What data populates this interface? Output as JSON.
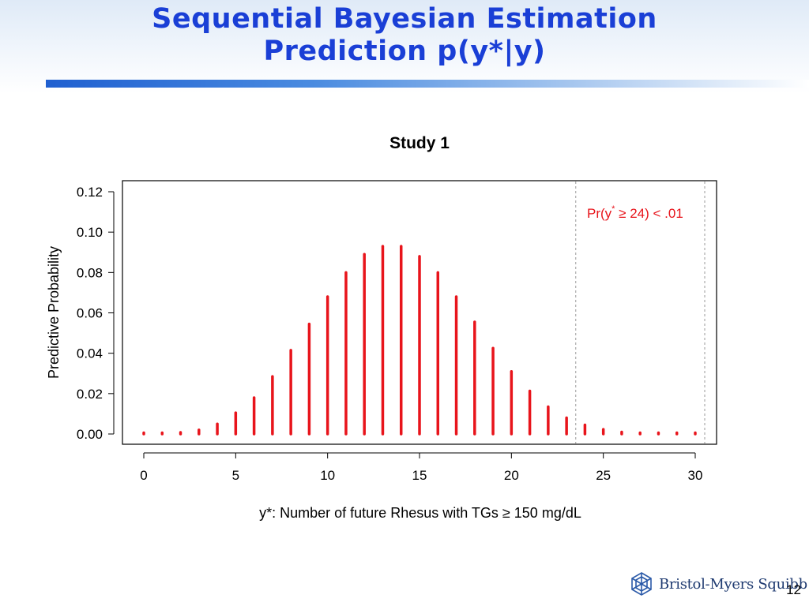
{
  "slide": {
    "title_line1": "Sequential Bayesian Estimation",
    "title_line2": "Prediction p(y*|y)",
    "page_number": "12",
    "logo_text": "Bristol-Myers Squibb",
    "logo_icon": "bms-logo-icon"
  },
  "chart_data": {
    "type": "bar",
    "title": "Study 1",
    "xlabel": "y*: Number of future Rhesus with TGs ≥ 150 mg/dL",
    "ylabel": "Predictive Probability",
    "xlim": [
      0,
      30
    ],
    "ylim": [
      0,
      0.12
    ],
    "x_ticks": [
      "0",
      "5",
      "10",
      "15",
      "20",
      "25",
      "30"
    ],
    "y_ticks": [
      "0.00",
      "0.02",
      "0.04",
      "0.06",
      "0.08",
      "0.10",
      "0.12"
    ],
    "grid": false,
    "bar_color": "#e8141b",
    "reference_line_x": 23.5,
    "annotation": {
      "text_main": "Pr(y",
      "text_sup": "*",
      "text_rest": " ≥ 24) < .01",
      "color": "#e8141b"
    },
    "x": [
      0,
      1,
      2,
      3,
      4,
      5,
      6,
      7,
      8,
      9,
      10,
      11,
      12,
      13,
      14,
      15,
      16,
      17,
      18,
      19,
      20,
      21,
      22,
      23,
      24,
      25,
      26,
      27,
      28,
      29,
      30
    ],
    "values": [
      0.0001,
      0.0003,
      0.0008,
      0.002,
      0.005,
      0.0105,
      0.018,
      0.0285,
      0.0415,
      0.0545,
      0.068,
      0.08,
      0.089,
      0.093,
      0.093,
      0.088,
      0.08,
      0.068,
      0.0555,
      0.0425,
      0.031,
      0.0213,
      0.0135,
      0.008,
      0.0045,
      0.0023,
      0.001,
      0.0004,
      0.0002,
      0.0001,
      5e-05
    ]
  }
}
